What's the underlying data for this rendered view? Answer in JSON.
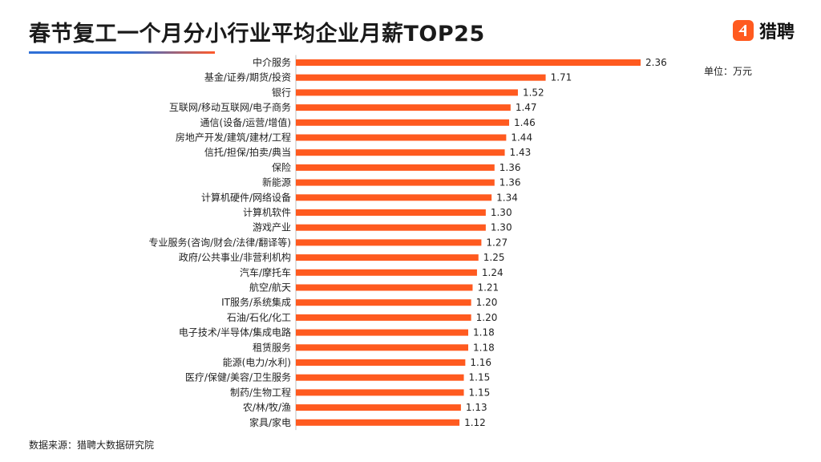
{
  "header": {
    "title": "春节复工一个月分小行业平均企业月薪TOP25",
    "logo_text": "猎聘",
    "logo_icon": "liepin-logo-icon"
  },
  "unit_label": "单位：万元",
  "source_label": "数据来源：猎聘大数据研究院",
  "colors": {
    "bar": "#ff5a1f",
    "title_underline_blue": "#2f6fd6",
    "title_underline_orange": "#ff5a2a"
  },
  "chart_data": {
    "type": "bar",
    "orientation": "horizontal",
    "categories": [
      "中介服务",
      "基金/证券/期货/投资",
      "银行",
      "互联网/移动互联网/电子商务",
      "通信(设备/运营/增值)",
      "房地产开发/建筑/建材/工程",
      "信托/担保/拍卖/典当",
      "保险",
      "新能源",
      "计算机硬件/网络设备",
      "计算机软件",
      "游戏产业",
      "专业服务(咨询/财会/法律/翻译等)",
      "政府/公共事业/非营利机构",
      "汽车/摩托车",
      "航空/航天",
      "IT服务/系统集成",
      "石油/石化/化工",
      "电子技术/半导体/集成电路",
      "租赁服务",
      "能源(电力/水利)",
      "医疗/保健/美容/卫生服务",
      "制药/生物工程",
      "农/林/牧/渔",
      "家具/家电"
    ],
    "values": [
      2.36,
      1.71,
      1.52,
      1.47,
      1.46,
      1.44,
      1.43,
      1.36,
      1.36,
      1.34,
      1.3,
      1.3,
      1.27,
      1.25,
      1.24,
      1.21,
      1.2,
      1.2,
      1.18,
      1.18,
      1.16,
      1.15,
      1.15,
      1.13,
      1.12
    ],
    "value_labels": [
      "2.36",
      "1.71",
      "1.52",
      "1.47",
      "1.46",
      "1.44",
      "1.43",
      "1.36",
      "1.36",
      "1.34",
      "1.30",
      "1.30",
      "1.27",
      "1.25",
      "1.24",
      "1.21",
      "1.20",
      "1.20",
      "1.18",
      "1.18",
      "1.16",
      "1.15",
      "1.15",
      "1.13",
      "1.12"
    ],
    "xlim": [
      0,
      2.36
    ],
    "grid": false,
    "legend": false
  }
}
